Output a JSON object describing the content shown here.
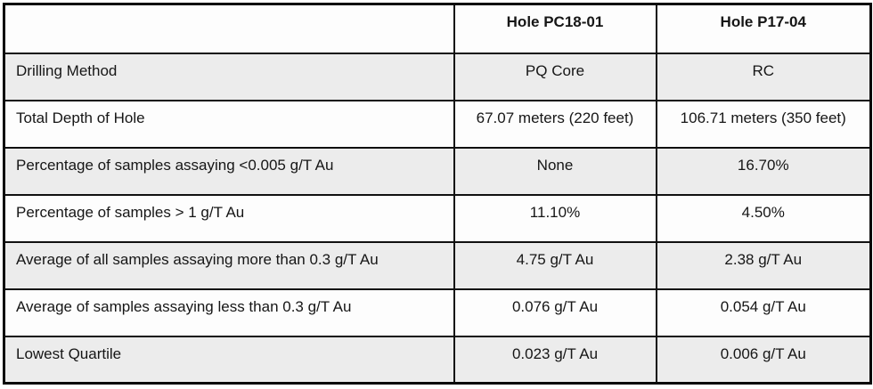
{
  "table": {
    "title_semantic": "drill-hole-assay-comparison",
    "columns": [
      "",
      "Hole PC18-01",
      "Hole P17-04"
    ],
    "rows": [
      {
        "label": "Drilling Method",
        "values": [
          "PQ Core",
          "RC"
        ]
      },
      {
        "label": "Total Depth of Hole",
        "values": [
          "67.07 meters (220 feet)",
          "106.71 meters (350 feet)"
        ]
      },
      {
        "label": "Percentage of samples assaying <0.005 g/T Au",
        "values": [
          "None",
          "16.70%"
        ]
      },
      {
        "label": "Percentage of samples > 1 g/T Au",
        "values": [
          "11.10%",
          "4.50%"
        ]
      },
      {
        "label": "Average of all samples assaying more than 0.3 g/T Au",
        "values": [
          "4.75 g/T Au",
          "2.38 g/T Au"
        ]
      },
      {
        "label": "Average of samples assaying less than 0.3 g/T Au",
        "values": [
          "0.076 g/T Au",
          "0.054 g/T Au"
        ]
      },
      {
        "label": "Lowest Quartile",
        "values": [
          "0.023 g/T Au",
          "0.006 g/T Au"
        ]
      }
    ],
    "colors": {
      "row_shaded": "#ececec",
      "row_plain": "#fdfdfd",
      "border": "#0a0a0a",
      "text": "#161616"
    }
  }
}
